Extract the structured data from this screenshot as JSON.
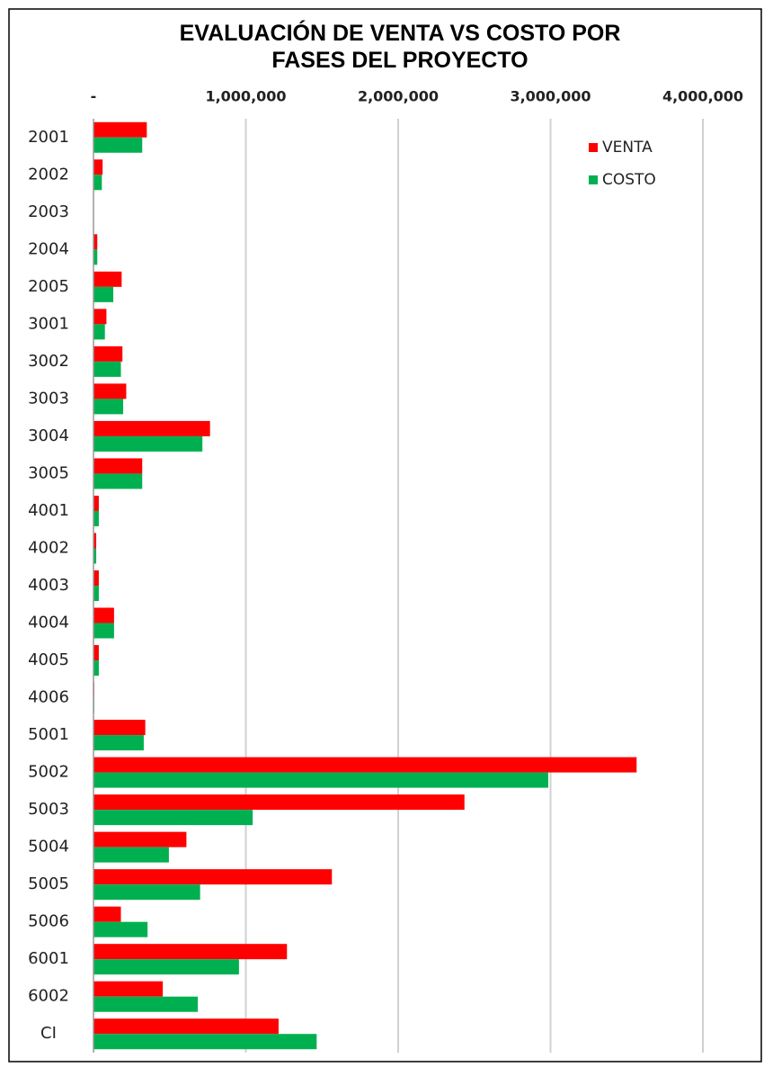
{
  "chart_data": {
    "type": "bar",
    "orientation": "horizontal",
    "title": "EVALUACIÓN DE VENTA VS COSTO POR FASES DEL PROYECTO",
    "categories": [
      "2001",
      "2002",
      "2003",
      "2004",
      "2005",
      "3001",
      "3002",
      "3003",
      "3004",
      "3005",
      "4001",
      "4002",
      "4003",
      "4004",
      "4005",
      "4006",
      "5001",
      "5002",
      "5003",
      "5004",
      "5005",
      "5006",
      "6001",
      "6002",
      "CI"
    ],
    "series": [
      {
        "name": "VENTA",
        "color": "#ff0000",
        "values": [
          350000,
          60000,
          0,
          25000,
          185000,
          85000,
          190000,
          215000,
          765000,
          320000,
          35000,
          18000,
          35000,
          135000,
          35000,
          5000,
          340000,
          3565000,
          2435000,
          610000,
          1565000,
          180000,
          1270000,
          455000,
          1215000
        ]
      },
      {
        "name": "COSTO",
        "color": "#00b050",
        "values": [
          320000,
          55000,
          0,
          25000,
          130000,
          75000,
          180000,
          195000,
          715000,
          320000,
          35000,
          18000,
          35000,
          135000,
          35000,
          5000,
          330000,
          2985000,
          1045000,
          495000,
          700000,
          355000,
          955000,
          685000,
          1465000
        ]
      }
    ],
    "xlim": [
      0,
      4000000
    ],
    "xticks": [
      {
        "value": 0,
        "label": "-"
      },
      {
        "value": 1000000,
        "label": "1,000,000"
      },
      {
        "value": 2000000,
        "label": "2,000,000"
      },
      {
        "value": 3000000,
        "label": "3,000,000"
      },
      {
        "value": 4000000,
        "label": "4,000,000"
      }
    ],
    "grid": true,
    "legend": "top-right"
  }
}
